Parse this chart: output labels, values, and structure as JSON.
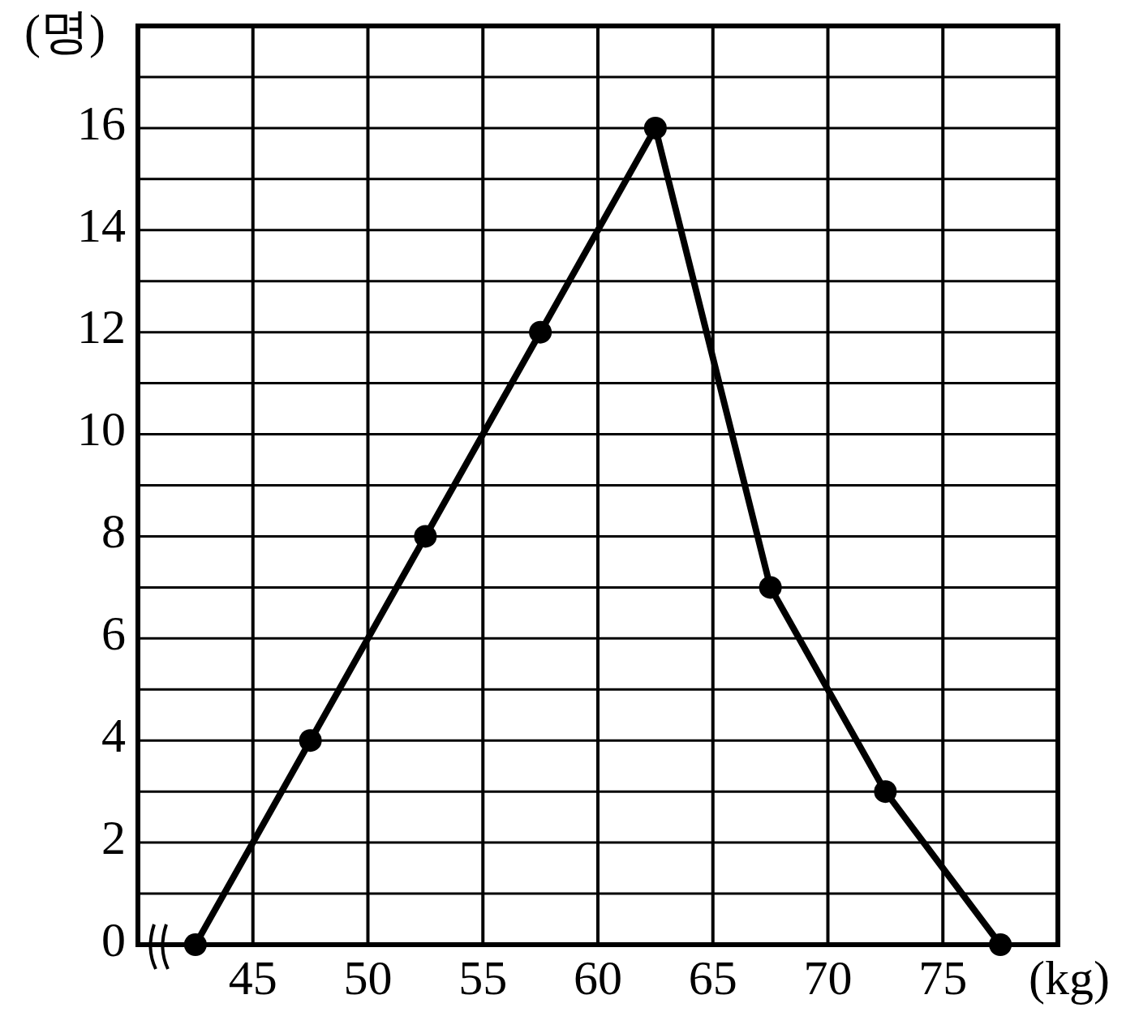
{
  "chart_data": {
    "type": "line",
    "xlabel": "(kg)",
    "ylabel": "(명)",
    "x": [
      42.5,
      47.5,
      52.5,
      57.5,
      62.5,
      67.5,
      72.5,
      77.5
    ],
    "series": [
      {
        "color": "#000000",
        "values": [
          0,
          4,
          8,
          12,
          16,
          7,
          3,
          0
        ]
      }
    ],
    "xlim": [
      40,
      80
    ],
    "xticks": [
      45,
      50,
      55,
      60,
      65,
      70,
      75
    ],
    "ylim": [
      0,
      18
    ],
    "yticks": [
      0,
      {
        "value": 1,
        "label": null
      },
      2,
      {
        "value": 3,
        "label": null
      },
      4,
      {
        "value": 5,
        "label": null
      },
      6,
      {
        "value": 7,
        "label": null
      },
      8,
      {
        "value": 9,
        "label": null
      },
      10,
      {
        "value": 11,
        "label": null
      },
      12,
      {
        "value": 13,
        "label": null
      },
      14,
      {
        "value": 15,
        "label": null
      },
      16,
      {
        "value": 17,
        "label": null
      }
    ],
    "grid": true,
    "marker": "circle",
    "line_style": "solid"
  }
}
